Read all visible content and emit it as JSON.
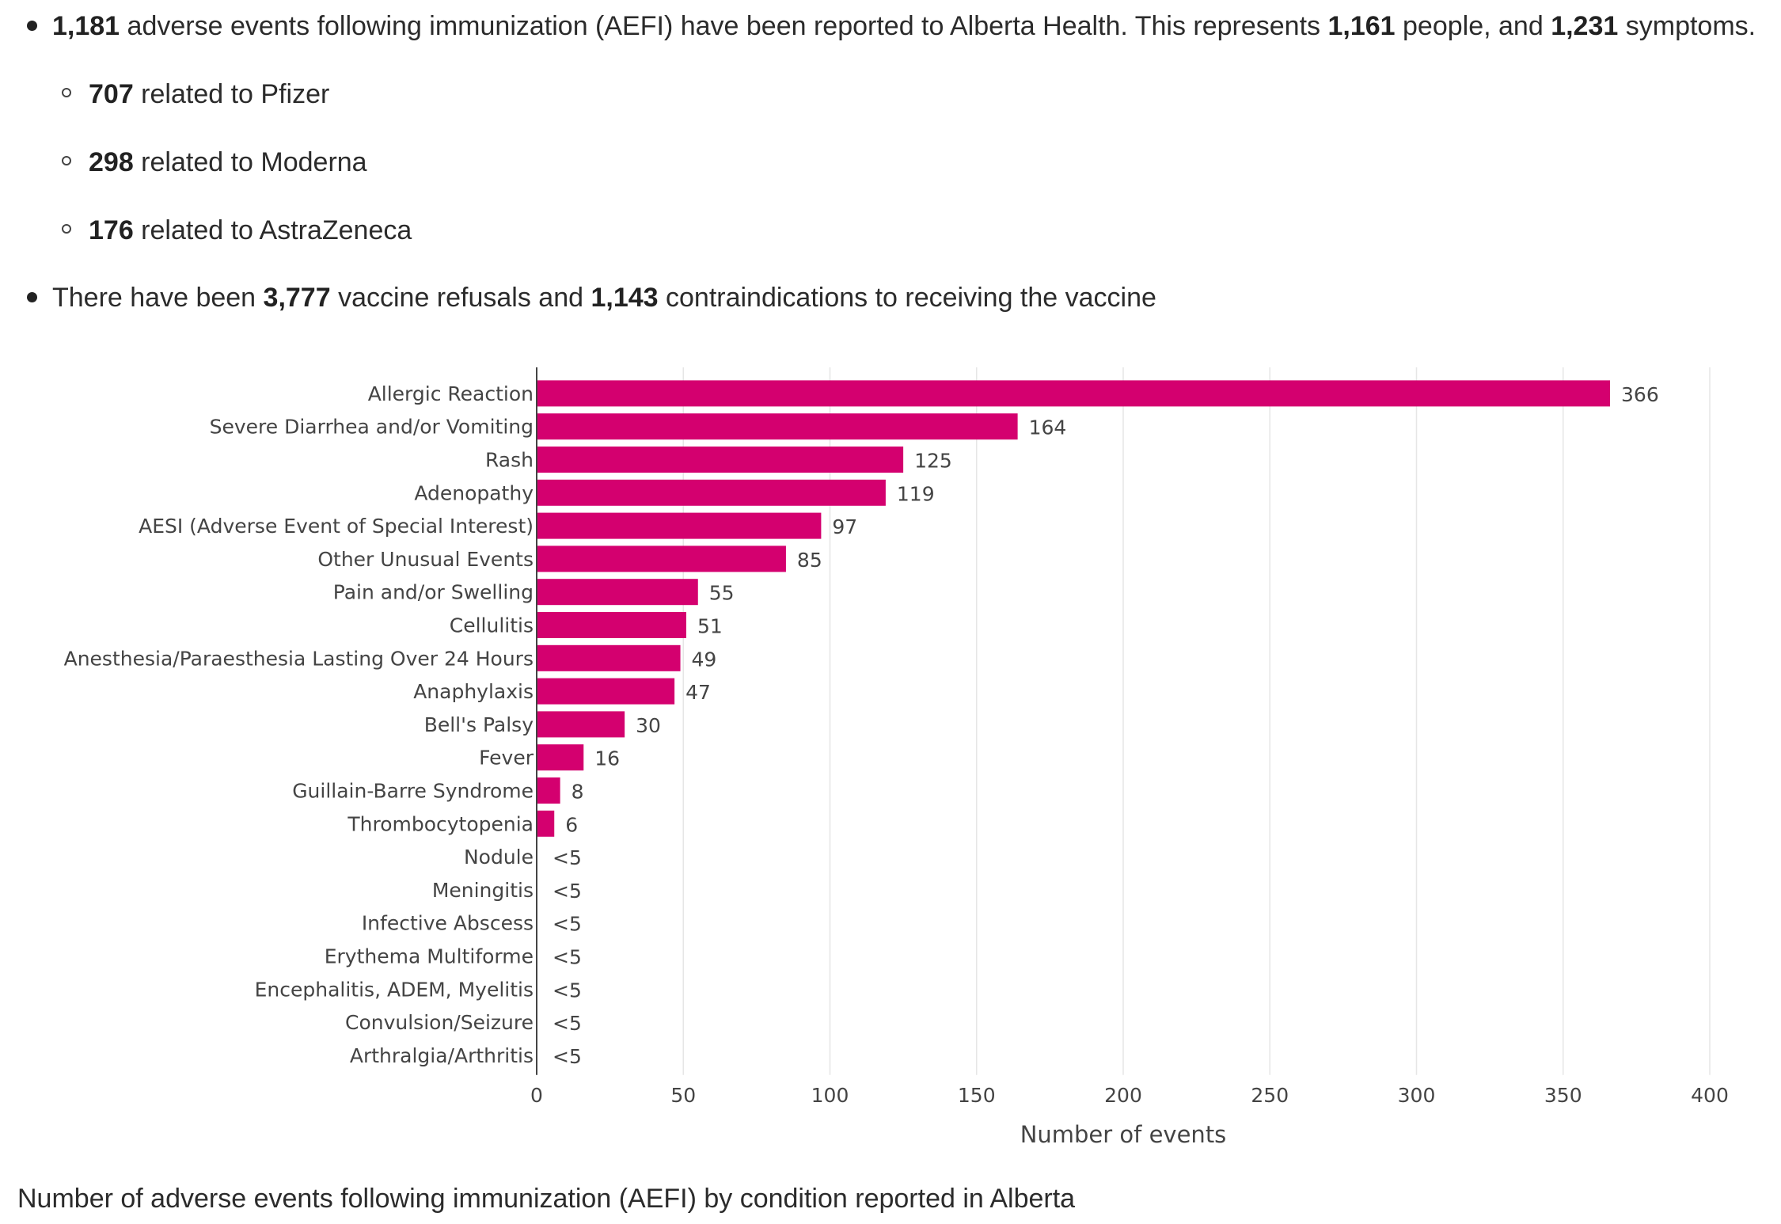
{
  "bullets": {
    "main1": {
      "n1": "1,181",
      "t1": " adverse events following immunization (AEFI) have been reported to Alberta Health. This represents ",
      "n2": "1,161",
      "t2": " people, and ",
      "n3": "1,231",
      "t3": " symptoms."
    },
    "sub": [
      {
        "num": "707",
        "text": " related to Pfizer"
      },
      {
        "num": "298",
        "text": " related to Moderna"
      },
      {
        "num": "176",
        "text": " related to AstraZeneca"
      }
    ],
    "main2": {
      "t1": "There have been ",
      "n1": "3,777",
      "t2": " vaccine refusals and ",
      "n2": "1,143",
      "t3": " contraindications to receiving the vaccine"
    }
  },
  "caption": "Number of adverse events following immunization (AEFI) by condition reported in Alberta",
  "colors": {
    "bar": "#d4006f",
    "grid": "#e6e6e6",
    "axis": "#444444",
    "text": "#444444"
  },
  "chart_data": {
    "type": "bar",
    "orientation": "horizontal",
    "categories": [
      "Allergic Reaction",
      "Severe Diarrhea and/or Vomiting",
      "Rash",
      "Adenopathy",
      "AESI (Adverse Event of Special Interest)",
      "Other Unusual Events",
      "Pain and/or Swelling",
      "Cellulitis",
      "Anesthesia/Paraesthesia Lasting Over 24 Hours",
      "Anaphylaxis",
      "Bell's Palsy",
      "Fever",
      "Guillain-Barre Syndrome",
      "Thrombocytopenia",
      "Nodule",
      "Meningitis",
      "Infective Abscess",
      "Erythema Multiforme",
      "Encephalitis, ADEM, Myelitis",
      "Convulsion/Seizure",
      "Arthralgia/Arthritis"
    ],
    "values": [
      366,
      164,
      125,
      119,
      97,
      85,
      55,
      51,
      49,
      47,
      30,
      16,
      8,
      6,
      null,
      null,
      null,
      null,
      null,
      null,
      null
    ],
    "data_labels": [
      "366",
      "164",
      "125",
      "119",
      "97",
      "85",
      "55",
      "51",
      "49",
      "47",
      "30",
      "16",
      "8",
      "6",
      "<5",
      "<5",
      "<5",
      "<5",
      "<5",
      "<5",
      "<5"
    ],
    "xlabel": "Number of events",
    "ylabel": "",
    "xlim": [
      0,
      400
    ],
    "xticks": [
      0,
      50,
      100,
      150,
      200,
      250,
      300,
      350,
      400
    ],
    "grid": "vertical"
  }
}
